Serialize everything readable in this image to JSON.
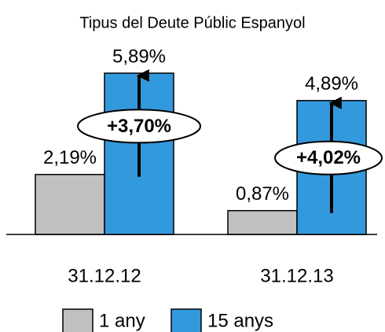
{
  "chart_data": {
    "type": "bar",
    "title": "Tipus del Deute Públic Espanyol",
    "categories": [
      "31.12.12",
      "31.12.13"
    ],
    "series": [
      {
        "name": "1 any",
        "color": "#c0c0c0",
        "values": [
          2.19,
          0.87
        ],
        "value_labels": [
          "2,19%",
          "0,87%"
        ]
      },
      {
        "name": "15 anys",
        "color": "#3399dd",
        "values": [
          5.89,
          4.89
        ],
        "value_labels": [
          "5,89%",
          "4,89%"
        ]
      }
    ],
    "annotations": [
      "+3,70%",
      "+4,02%"
    ]
  }
}
